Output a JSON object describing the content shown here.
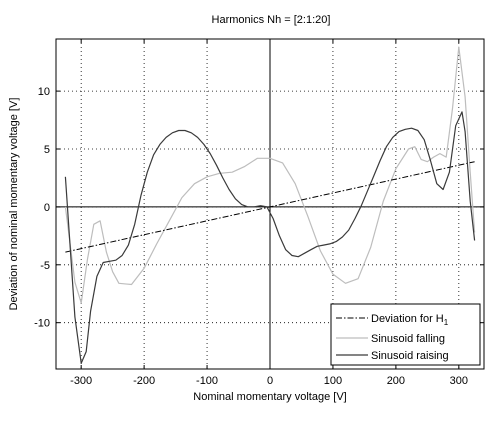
{
  "chart_data": {
    "type": "line",
    "title": "Harmonics Nh = [2:1:20]",
    "xlabel": "Nominal momentary voltage [V]",
    "ylabel": "Deviation of nominal momentary voltage [V]",
    "xlim": [
      -340,
      340
    ],
    "ylim": [
      -14,
      14.5
    ],
    "xticks": [
      -300,
      -200,
      -100,
      0,
      100,
      200,
      300
    ],
    "yticks": [
      -10,
      -5,
      0,
      5,
      10
    ],
    "grid": true,
    "legend_position": "bottom-right",
    "reference_lines": {
      "x": 0,
      "y": 0
    },
    "series": [
      {
        "name": "Deviation for H",
        "name_subscript": "1",
        "color": "#000000",
        "style": "dash-dot",
        "x": [
          -325,
          325
        ],
        "y": [
          -3.9,
          3.9
        ]
      },
      {
        "name": "Sinusoid falling",
        "color": "#bdbdbd",
        "style": "solid",
        "x": [
          325,
          318,
          310,
          300,
          290,
          280,
          270,
          260,
          250,
          240,
          230,
          220,
          200,
          180,
          160,
          140,
          120,
          100,
          80,
          60,
          40,
          20,
          0,
          -20,
          -40,
          -60,
          -80,
          -100,
          -120,
          -140,
          -160,
          -180,
          -200,
          -220,
          -240,
          -250,
          -260,
          -270,
          -280,
          -290,
          -300,
          -310,
          -318,
          -325
        ],
        "y": [
          -2.2,
          3.0,
          9.5,
          13.8,
          8.5,
          4.3,
          4.6,
          4.3,
          3.9,
          4.1,
          5.2,
          5.0,
          3.3,
          0.5,
          -3.5,
          -6.2,
          -6.6,
          -5.8,
          -3.8,
          -0.8,
          2.0,
          3.8,
          4.2,
          4.2,
          3.5,
          3.0,
          2.9,
          2.6,
          2.0,
          0.8,
          -1.2,
          -3.2,
          -5.3,
          -6.7,
          -6.6,
          -5.6,
          -3.9,
          -1.2,
          -1.5,
          -4.5,
          -8.3,
          -6.5,
          -3.0,
          0.0
        ]
      },
      {
        "name": "Sinusoid raising",
        "color": "#3a3a3a",
        "style": "solid",
        "x": [
          -325,
          -318,
          -310,
          -300,
          -292,
          -285,
          -275,
          -265,
          -255,
          -245,
          -235,
          -225,
          -215,
          -205,
          -195,
          -185,
          -175,
          -165,
          -155,
          -145,
          -135,
          -125,
          -115,
          -105,
          -95,
          -85,
          -75,
          -65,
          -55,
          -45,
          -35,
          -25,
          -15,
          -5,
          5,
          15,
          25,
          35,
          45,
          55,
          65,
          75,
          85,
          95,
          105,
          115,
          125,
          135,
          145,
          155,
          165,
          175,
          185,
          195,
          205,
          215,
          225,
          235,
          245,
          255,
          265,
          275,
          285,
          295,
          305,
          310,
          318,
          325
        ],
        "y": [
          2.6,
          -3.0,
          -9.5,
          -13.5,
          -12.5,
          -9.0,
          -6.0,
          -4.8,
          -4.7,
          -4.6,
          -4.2,
          -3.3,
          -1.5,
          1.0,
          3.0,
          4.5,
          5.4,
          6.0,
          6.4,
          6.6,
          6.6,
          6.4,
          6.0,
          5.4,
          4.6,
          3.6,
          2.5,
          1.5,
          0.7,
          0.2,
          0.0,
          0.0,
          0.1,
          0.0,
          -1.0,
          -2.5,
          -3.7,
          -4.2,
          -4.3,
          -4.0,
          -3.7,
          -3.4,
          -3.3,
          -3.2,
          -3.0,
          -2.6,
          -2.0,
          -1.0,
          0.1,
          1.4,
          2.7,
          4.0,
          5.2,
          6.0,
          6.5,
          6.7,
          6.8,
          6.6,
          5.8,
          4.0,
          2.0,
          1.5,
          3.0,
          7.0,
          8.2,
          6.5,
          0.5,
          -2.9
        ]
      }
    ]
  }
}
